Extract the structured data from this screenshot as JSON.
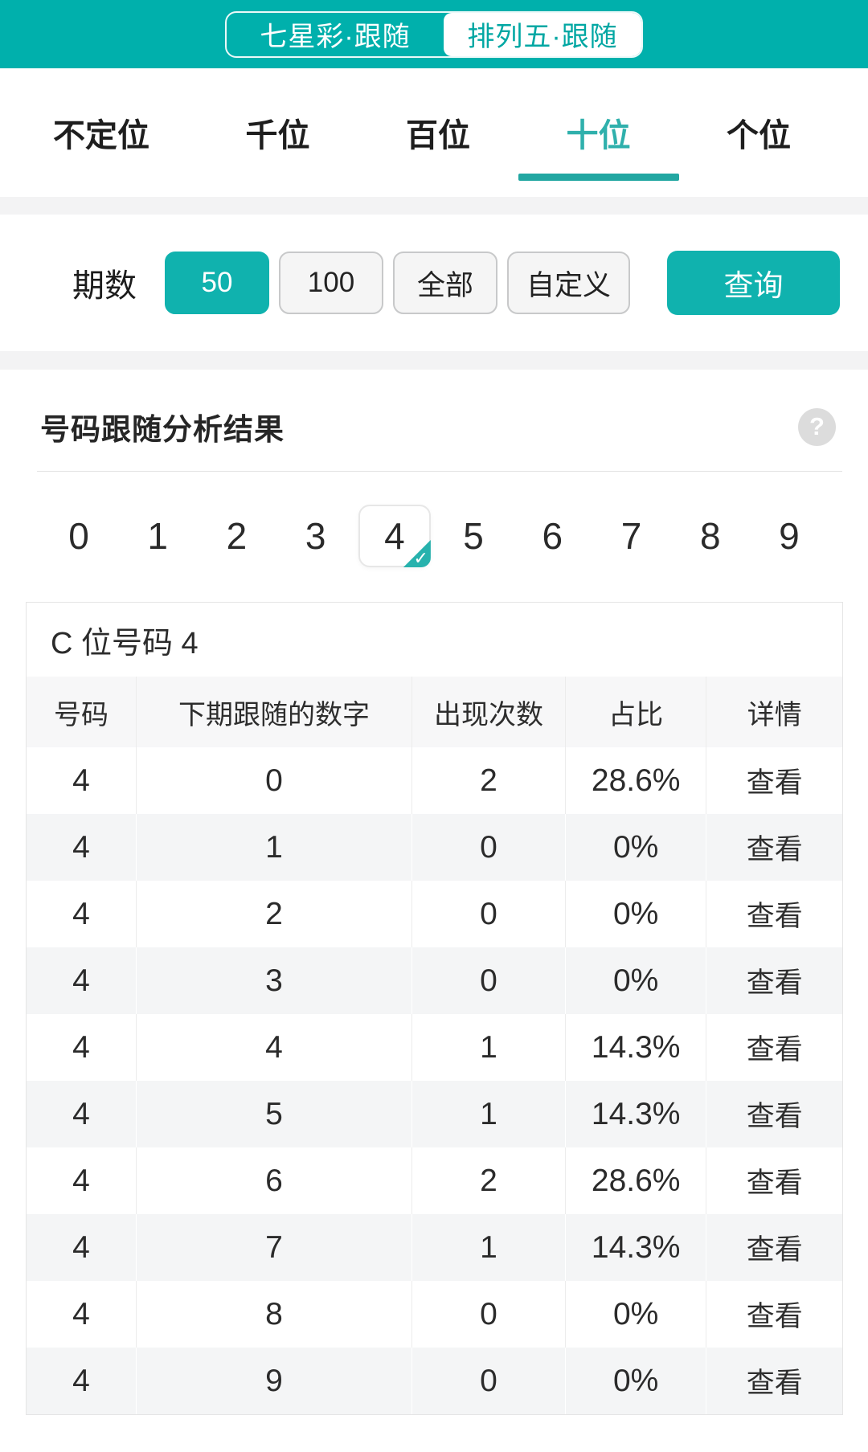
{
  "colors": {
    "accent": "#00b0ac",
    "accent_button": "#10b2ae",
    "tab_underline": "#22a7a2",
    "header_row_bg": "#f7f7f8",
    "alt_row_bg": "#f4f5f6"
  },
  "header": {
    "game_tabs": [
      {
        "label": "七星彩·跟随",
        "active": false
      },
      {
        "label": "排列五·跟随",
        "active": true
      }
    ]
  },
  "position_tabs": [
    {
      "label": "不定位",
      "active": false
    },
    {
      "label": "千位",
      "active": false
    },
    {
      "label": "百位",
      "active": false
    },
    {
      "label": "十位",
      "active": true
    },
    {
      "label": "个位",
      "active": false
    }
  ],
  "period": {
    "label": "期数",
    "options": [
      {
        "label": "50",
        "selected": true
      },
      {
        "label": "100",
        "selected": false
      },
      {
        "label": "全部",
        "selected": false
      },
      {
        "label": "自定义",
        "selected": false
      }
    ],
    "query_label": "查询"
  },
  "result": {
    "title": "号码跟随分析结果",
    "help_icon": "?",
    "digits": [
      "0",
      "1",
      "2",
      "3",
      "4",
      "5",
      "6",
      "7",
      "8",
      "9"
    ],
    "selected_digit": "4",
    "check_glyph": "✓",
    "table": {
      "title": "C 位号码 4",
      "headers": [
        "号码",
        "下期跟随的数字",
        "出现次数",
        "占比",
        "详情"
      ],
      "action_label": "查看",
      "rows": [
        {
          "number": "4",
          "follow": "0",
          "count": "2",
          "ratio": "28.6%"
        },
        {
          "number": "4",
          "follow": "1",
          "count": "0",
          "ratio": "0%"
        },
        {
          "number": "4",
          "follow": "2",
          "count": "0",
          "ratio": "0%"
        },
        {
          "number": "4",
          "follow": "3",
          "count": "0",
          "ratio": "0%"
        },
        {
          "number": "4",
          "follow": "4",
          "count": "1",
          "ratio": "14.3%"
        },
        {
          "number": "4",
          "follow": "5",
          "count": "1",
          "ratio": "14.3%"
        },
        {
          "number": "4",
          "follow": "6",
          "count": "2",
          "ratio": "28.6%"
        },
        {
          "number": "4",
          "follow": "7",
          "count": "1",
          "ratio": "14.3%"
        },
        {
          "number": "4",
          "follow": "8",
          "count": "0",
          "ratio": "0%"
        },
        {
          "number": "4",
          "follow": "9",
          "count": "0",
          "ratio": "0%"
        }
      ]
    }
  }
}
